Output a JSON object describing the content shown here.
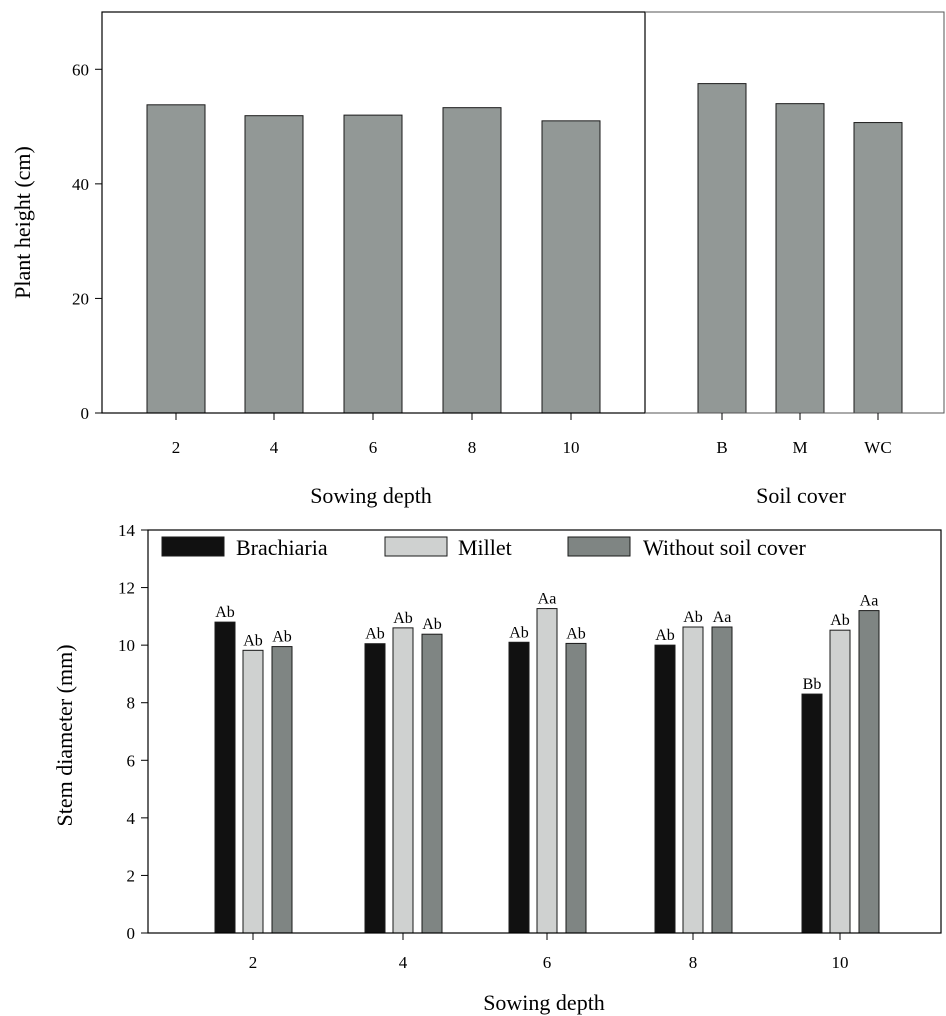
{
  "colors": {
    "plant_bar": "#929896",
    "brachiaria": "#111111",
    "millet": "#cfd1d0",
    "without_soil_cover": "#7f8583"
  },
  "chart_data": [
    {
      "type": "bar",
      "ylabel": "Plant height (cm)",
      "ylim": [
        0,
        70
      ],
      "yticks": [
        0,
        20,
        40,
        60
      ],
      "panels": [
        {
          "xlabel": "Sowing depth",
          "categories": [
            "2",
            "4",
            "6",
            "8",
            "10"
          ],
          "values": [
            53.8,
            51.9,
            52.0,
            53.3,
            51.0
          ]
        },
        {
          "xlabel": "Soil cover",
          "categories": [
            "B",
            "M",
            "WC"
          ],
          "values": [
            57.5,
            54.0,
            50.7
          ]
        }
      ]
    },
    {
      "type": "bar",
      "xlabel": "Sowing depth",
      "ylabel": "Stem diameter (mm)",
      "ylim": [
        0,
        14
      ],
      "yticks": [
        0,
        2,
        4,
        6,
        8,
        10,
        12,
        14
      ],
      "categories": [
        "2",
        "4",
        "6",
        "8",
        "10"
      ],
      "legend_position": "top",
      "series": [
        {
          "name": "Brachiaria",
          "values": [
            10.8,
            10.05,
            10.1,
            10.0,
            8.3
          ],
          "labels": [
            "Ab",
            "Ab",
            "Ab",
            "Ab",
            "Bb"
          ]
        },
        {
          "name": "Millet",
          "values": [
            9.82,
            10.6,
            11.27,
            10.63,
            10.52
          ],
          "labels": [
            "Ab",
            "Ab",
            "Aa",
            "Ab",
            "Ab"
          ]
        },
        {
          "name": "Without soil cover",
          "values": [
            9.95,
            10.38,
            10.06,
            10.63,
            11.2
          ],
          "labels": [
            "Ab",
            "Ab",
            "Ab",
            "Aa",
            "Aa"
          ]
        }
      ]
    }
  ]
}
